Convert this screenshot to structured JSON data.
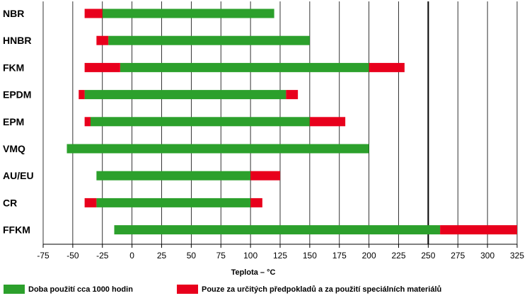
{
  "chart_data": {
    "type": "bar",
    "orientation": "horizontal",
    "categories": [
      "NBR",
      "HNBR",
      "FKM",
      "EPDM",
      "EPM",
      "VMQ",
      "AU/EU",
      "CR",
      "FFKM"
    ],
    "series": [
      {
        "name": "Doba použití cca 1000 hodin",
        "color": "#2ca02c",
        "ranges": [
          [
            -25,
            120
          ],
          [
            -20,
            150
          ],
          [
            -10,
            200
          ],
          [
            -40,
            130
          ],
          [
            -35,
            150
          ],
          [
            -55,
            200
          ],
          [
            -30,
            100
          ],
          [
            -30,
            100
          ],
          [
            -15,
            260
          ]
        ]
      },
      {
        "name": "Pouze za určitých předpokladů a za použití speciálních materiálů",
        "color": "#e8001c",
        "ranges": [
          [
            [
              -40,
              -25
            ]
          ],
          [
            [
              -30,
              -20
            ]
          ],
          [
            [
              -40,
              -10
            ],
            [
              200,
              230
            ]
          ],
          [
            [
              -45,
              -40
            ],
            [
              130,
              140
            ]
          ],
          [
            [
              -40,
              -35
            ],
            [
              150,
              180
            ]
          ],
          [],
          [
            [
              100,
              125
            ]
          ],
          [
            [
              -40,
              -30
            ],
            [
              100,
              110
            ]
          ],
          [
            [
              260,
              325
            ]
          ]
        ]
      }
    ],
    "xlabel": "Teplota – °C",
    "xlim": [
      -75,
      325
    ],
    "xticks": [
      -75,
      -50,
      -25,
      0,
      25,
      50,
      75,
      100,
      125,
      150,
      175,
      200,
      225,
      250,
      275,
      300,
      325
    ],
    "highlight_x": 250,
    "grid": "vertical",
    "legend_placement": "bottom"
  },
  "legend": {
    "items": [
      {
        "label": "Doba použití cca 1000 hodin",
        "color": "#2ca02c"
      },
      {
        "label": "Pouze za určitých předpokladů a za použití speciálních materiálů",
        "color": "#e8001c"
      }
    ]
  }
}
